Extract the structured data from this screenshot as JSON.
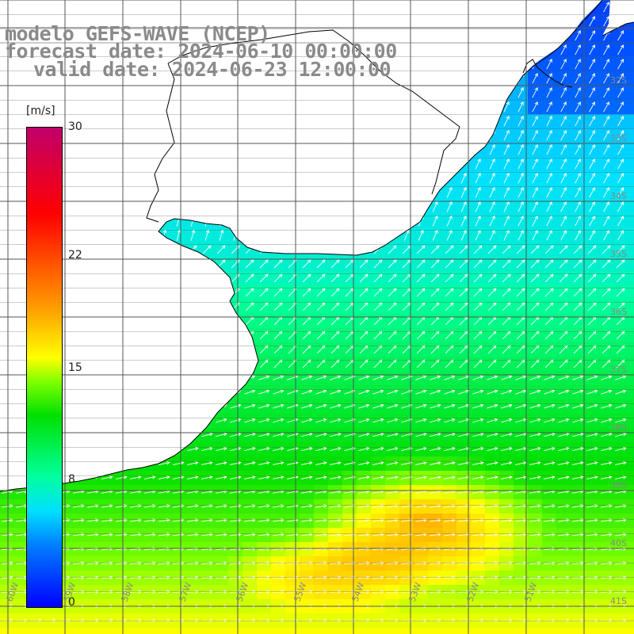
{
  "title": {
    "line1": "modelo GEFS-WAVE (NCEP)",
    "line2": "forecast date: 2024-06-10 00:00:00",
    "line3": "valid date: 2024-06-23 12:00:00"
  },
  "colorbar": {
    "unit": "[m/s]",
    "min": 0,
    "max": 30,
    "ticks": [
      {
        "value": 30,
        "label": "30"
      },
      {
        "value": 22,
        "label": "22"
      },
      {
        "value": 15,
        "label": "15"
      },
      {
        "value": 8,
        "label": "8"
      },
      {
        "value": 0,
        "label": "0"
      }
    ]
  },
  "axes": {
    "lat_labels": [
      "32S",
      "33S",
      "34S",
      "35S",
      "36S",
      "37S",
      "38S",
      "39S",
      "40S",
      "41S"
    ],
    "lon_labels": [
      "60W",
      "59W",
      "58W",
      "57W",
      "56W",
      "55W",
      "54W",
      "53W",
      "52W",
      "51W"
    ]
  },
  "colors": {
    "land": "#ffffff",
    "coastline": "#000000",
    "grid": "#555555",
    "arrows": "#ffffff",
    "labels": "#888888"
  }
}
